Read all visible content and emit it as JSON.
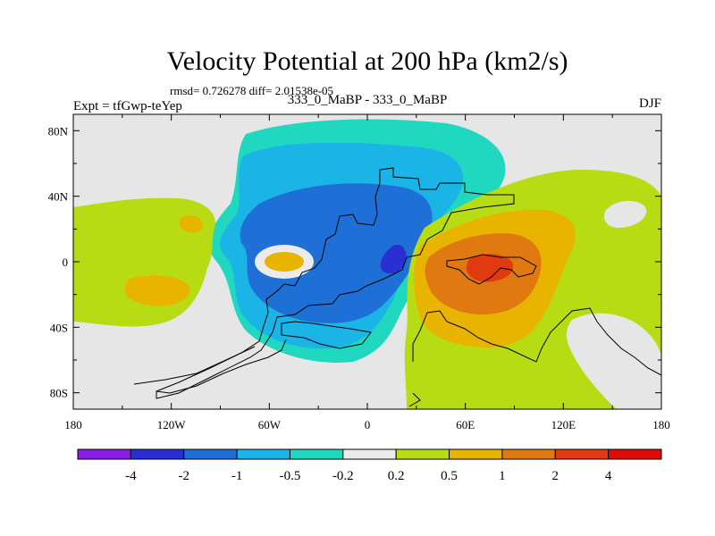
{
  "chart_data": {
    "type": "contour_map",
    "title": "Velocity Potential at 200 hPa (km2/s)",
    "stats_text": "rmsd= 0.726278  diff= 2.01538e-05",
    "left_label": "Expt = tfGwp-teYep",
    "center_label": "333_0_MaBP - 333_0_MaBP",
    "right_label": "DJF",
    "x_ticks": [
      "180",
      "120W",
      "60W",
      "0",
      "60E",
      "120E",
      "180"
    ],
    "x_tick_values": [
      -180,
      -120,
      -60,
      0,
      60,
      120,
      180
    ],
    "y_ticks": [
      "80N",
      "40N",
      "0",
      "40S",
      "80S"
    ],
    "y_tick_values": [
      80,
      40,
      0,
      -40,
      -80
    ],
    "xlim": [
      -180,
      180
    ],
    "ylim": [
      -90,
      90
    ],
    "colorbar": {
      "levels": [
        "-4",
        "-2",
        "-1",
        "-0.5",
        "-0.2",
        "0.2",
        "0.5",
        "1",
        "2",
        "4"
      ],
      "colors": [
        "#8a1ce3",
        "#2a2fd4",
        "#1e6fd6",
        "#1ab4e6",
        "#20d8c0",
        "#ebebeb",
        "#b8dc14",
        "#e8b400",
        "#e07a10",
        "#e03a10",
        "#e00a0a"
      ]
    },
    "background_color": "#e6e6e6"
  }
}
